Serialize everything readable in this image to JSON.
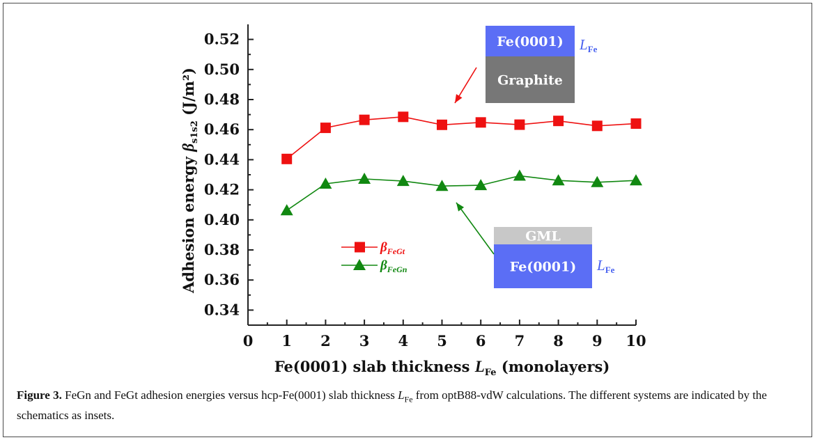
{
  "chart_data": {
    "type": "line",
    "x": [
      1,
      2,
      3,
      4,
      5,
      6,
      7,
      8,
      9,
      10
    ],
    "xlim": [
      0,
      10
    ],
    "ylim": [
      0.33,
      0.53
    ],
    "xticks": [
      "0",
      "1",
      "2",
      "3",
      "4",
      "5",
      "6",
      "7",
      "8",
      "9",
      "10"
    ],
    "yticks": [
      "0.34",
      "0.36",
      "0.38",
      "0.40",
      "0.42",
      "0.44",
      "0.46",
      "0.48",
      "0.50",
      "0.52"
    ],
    "xlabel": "Fe(0001) slab thickness",
    "xlabel_symbol": "L",
    "xlabel_sub": "Fe",
    "xlabel_suffix": "(monolayers)",
    "ylabel": "Adhesion energy",
    "ylabel_symbol": "β",
    "ylabel_sub": "s1s2",
    "ylabel_unit": "(J/m²)",
    "grid": false,
    "legend_position": "lower-left",
    "series": [
      {
        "name": "β",
        "name_sub": "FeGt",
        "marker": "square",
        "color": "#ee1111",
        "values": [
          0.4405,
          0.4612,
          0.4665,
          0.4685,
          0.4632,
          0.4648,
          0.4633,
          0.4658,
          0.4625,
          0.464
        ]
      },
      {
        "name": "β",
        "name_sub": "FeGn",
        "marker": "triangle",
        "color": "#118811",
        "values": [
          0.4063,
          0.424,
          0.4272,
          0.4258,
          0.4225,
          0.423,
          0.4293,
          0.4262,
          0.425,
          0.4262
        ]
      }
    ]
  },
  "insets": {
    "top": {
      "upper_label": "Fe(0001)",
      "lower_label": "Graphite",
      "side_label": "L",
      "side_sub": "Fe",
      "upper_color": "#5b6ef5",
      "lower_color": "#777777",
      "arrow_color": "#ee1111"
    },
    "bottom": {
      "upper_label": "GML",
      "lower_label": "Fe(0001)",
      "side_label": "L",
      "side_sub": "Fe",
      "upper_color": "#c8c8c8",
      "lower_color": "#5b6ef5",
      "arrow_color": "#118811"
    }
  },
  "caption": {
    "label": "Figure 3.",
    "text_before": " FeGn and FeGt adhesion energies versus hcp-Fe(0001) slab thickness ",
    "symbol": "L",
    "sub": "Fe",
    "text_after": " from optB88-vdW calculations. The different systems are indicated by the schematics as insets."
  }
}
